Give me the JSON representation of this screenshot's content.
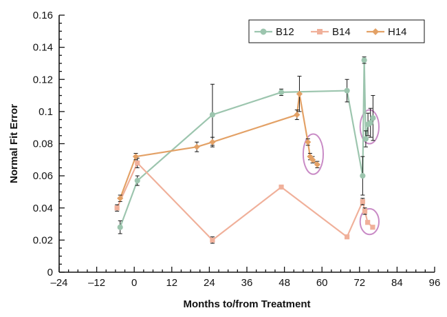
{
  "chart_data": {
    "type": "line",
    "xlabel": "Months to/from Treatment",
    "ylabel": "Normal Fit Error",
    "xlim": [
      -24,
      96
    ],
    "ylim": [
      0,
      0.16
    ],
    "xticks": [
      -24,
      -12,
      0,
      12,
      24,
      36,
      48,
      60,
      72,
      84,
      96
    ],
    "xtick_labels": [
      "–24",
      "–12",
      "0",
      "12",
      "24",
      "36",
      "48",
      "60",
      "72",
      "84",
      "96"
    ],
    "yticks": [
      0,
      0.02,
      0.04,
      0.06,
      0.08,
      0.1,
      0.12,
      0.14,
      0.16
    ],
    "ytick_labels": [
      "0",
      "0.02",
      "0.04",
      "0.06",
      "0.08",
      "0.1",
      "0.12",
      "0.14",
      "0.16"
    ],
    "grid": false,
    "legend_position": "top-right",
    "series": [
      {
        "name": "B12",
        "color": "#9cc5ae",
        "marker": "circle",
        "points": [
          {
            "x": -4.5,
            "y": 0.028,
            "err": 0.004
          },
          {
            "x": 1,
            "y": 0.057,
            "err": 0.003
          },
          {
            "x": 25,
            "y": 0.098,
            "err": 0.019
          },
          {
            "x": 47,
            "y": 0.112,
            "err": 0.002
          },
          {
            "x": 68,
            "y": 0.113,
            "err": 0.007
          },
          {
            "x": 73,
            "y": 0.06,
            "err": 0.012
          },
          {
            "x": 73.5,
            "y": 0.132,
            "err": 0.002
          },
          {
            "x": 74,
            "y": 0.083,
            "err": 0.005
          },
          {
            "x": 74.7,
            "y": 0.092,
            "err": 0.007
          },
          {
            "x": 75.5,
            "y": 0.093,
            "err": 0.009
          },
          {
            "x": 76.3,
            "y": 0.096,
            "err": 0.014
          }
        ]
      },
      {
        "name": "B14",
        "color": "#f0b09a",
        "marker": "square",
        "points": [
          {
            "x": -5.5,
            "y": 0.04,
            "err": 0.002
          },
          {
            "x": 1,
            "y": 0.068,
            "err": 0.003
          },
          {
            "x": 25,
            "y": 0.02,
            "err": 0.002
          },
          {
            "x": 47,
            "y": 0.053,
            "err": 0.001
          },
          {
            "x": 68,
            "y": 0.022,
            "err": 0.001
          },
          {
            "x": 73,
            "y": 0.044,
            "err": 0.002
          },
          {
            "x": 73.7,
            "y": 0.038,
            "err": 0.002
          },
          {
            "x": 74.6,
            "y": 0.031,
            "err": 0.001
          },
          {
            "x": 76.2,
            "y": 0.028,
            "err": 0.001
          }
        ]
      },
      {
        "name": "H14",
        "color": "#e3a166",
        "marker": "diamond",
        "points": [
          {
            "x": -4.5,
            "y": 0.046,
            "err": 0.002
          },
          {
            "x": 0.5,
            "y": 0.072,
            "err": 0.002
          },
          {
            "x": 20,
            "y": 0.078,
            "err": 0.003
          },
          {
            "x": 25,
            "y": 0.081,
            "err": 0.003
          },
          {
            "x": 52,
            "y": 0.098,
            "err": 0.003
          },
          {
            "x": 52.8,
            "y": 0.111,
            "err": 0.011
          },
          {
            "x": 55.5,
            "y": 0.081,
            "err": 0.002
          },
          {
            "x": 56.2,
            "y": 0.072,
            "err": 0.002
          },
          {
            "x": 57,
            "y": 0.07,
            "err": 0.002
          },
          {
            "x": 58.5,
            "y": 0.067,
            "err": 0.002
          }
        ]
      }
    ],
    "annotations": [
      {
        "type": "ellipse",
        "color": "#c98bc6",
        "cx": 57.2,
        "cy": 0.0735,
        "rx": 3.2,
        "ry": 0.0125
      },
      {
        "type": "ellipse",
        "color": "#c98bc6",
        "cx": 75.2,
        "cy": 0.0905,
        "rx": 3.0,
        "ry": 0.0105
      },
      {
        "type": "ellipse",
        "color": "#c98bc6",
        "cx": 75.2,
        "cy": 0.0315,
        "rx": 3.0,
        "ry": 0.008
      }
    ]
  }
}
